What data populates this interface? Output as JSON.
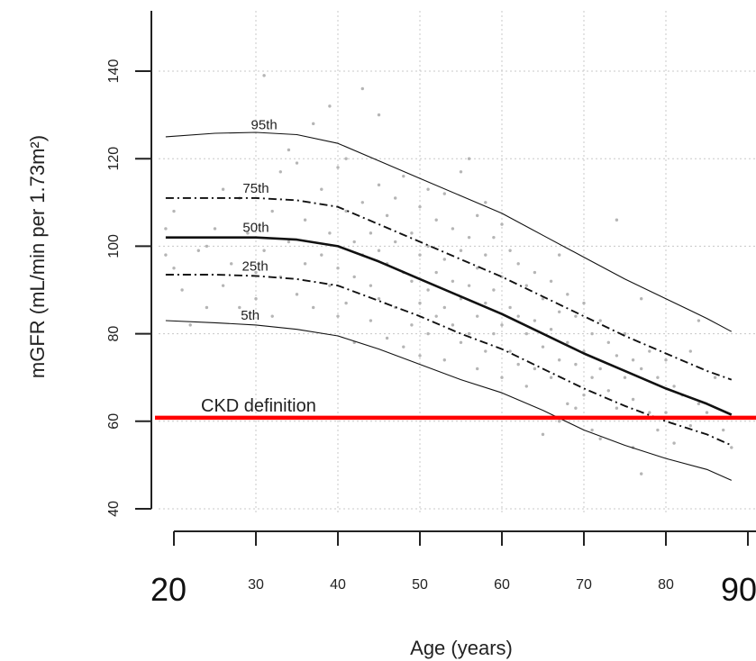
{
  "chart_data": {
    "type": "line",
    "xlabel": "Age (years)",
    "ylabel": "mGFR (mL/min per 1.73m²)",
    "xlim": [
      18,
      90
    ],
    "ylim": [
      38,
      150
    ],
    "x_ticks": [
      20,
      30,
      40,
      50,
      60,
      70,
      80,
      90
    ],
    "x_tick_labels": [
      "20",
      "30",
      "40",
      "50",
      "60",
      "70",
      "80",
      "90"
    ],
    "y_ticks": [
      40,
      60,
      80,
      100,
      120,
      140
    ],
    "y_tick_labels": [
      "40",
      "60",
      "80",
      "100",
      "120",
      "140"
    ],
    "grid": true,
    "x": [
      19,
      25,
      30,
      35,
      40,
      45,
      50,
      55,
      60,
      65,
      70,
      75,
      80,
      85,
      88
    ],
    "series": [
      {
        "name": "95th",
        "style": "solid-thin",
        "values": [
          125,
          125.8,
          126,
          125.5,
          123.5,
          119.5,
          115.5,
          111.5,
          107.5,
          102.5,
          97.5,
          92.5,
          88,
          83.5,
          80.5
        ]
      },
      {
        "name": "75th",
        "style": "dashdot",
        "values": [
          111,
          111,
          111,
          110.5,
          109,
          105,
          101,
          97,
          93,
          88.5,
          84,
          79.5,
          75.5,
          71.5,
          69.5
        ]
      },
      {
        "name": "50th",
        "style": "solid-thick",
        "values": [
          102,
          102,
          102,
          101.5,
          100,
          96.5,
          92.5,
          88.5,
          84.5,
          80,
          75.5,
          71.5,
          67.5,
          64,
          61.5
        ]
      },
      {
        "name": "25th",
        "style": "dashdot",
        "values": [
          93.5,
          93.5,
          93.2,
          92.5,
          91,
          87.5,
          84,
          80,
          76.5,
          72,
          67.5,
          63.5,
          60,
          57,
          54.5
        ]
      },
      {
        "name": "5th",
        "style": "solid-thin",
        "values": [
          83,
          82.5,
          82,
          81,
          79.5,
          76.5,
          73,
          69.5,
          66.5,
          62.5,
          58,
          54.5,
          51.5,
          49,
          46.5
        ]
      }
    ],
    "reference_line": {
      "label": "CKD definition",
      "y": 60.8,
      "color": "#ff0000"
    },
    "scatter": [
      [
        19,
        98
      ],
      [
        19,
        104
      ],
      [
        20,
        108
      ],
      [
        20,
        95
      ],
      [
        21,
        90
      ],
      [
        22,
        82
      ],
      [
        23,
        99
      ],
      [
        24,
        86
      ],
      [
        24,
        100
      ],
      [
        25,
        104
      ],
      [
        26,
        91
      ],
      [
        26,
        113
      ],
      [
        27,
        96
      ],
      [
        28,
        86
      ],
      [
        28,
        111
      ],
      [
        29,
        103
      ],
      [
        30,
        88
      ],
      [
        30,
        94
      ],
      [
        31,
        139
      ],
      [
        31,
        99
      ],
      [
        32,
        84
      ],
      [
        32,
        108
      ],
      [
        33,
        117
      ],
      [
        33,
        93
      ],
      [
        34,
        122
      ],
      [
        34,
        101
      ],
      [
        35,
        119
      ],
      [
        35,
        89
      ],
      [
        36,
        106
      ],
      [
        36,
        96
      ],
      [
        37,
        128
      ],
      [
        37,
        86
      ],
      [
        38,
        113
      ],
      [
        38,
        98
      ],
      [
        39,
        132
      ],
      [
        39,
        103
      ],
      [
        39,
        91
      ],
      [
        40,
        118
      ],
      [
        40,
        95
      ],
      [
        40,
        84
      ],
      [
        41,
        120
      ],
      [
        41,
        108
      ],
      [
        41,
        87
      ],
      [
        42,
        101
      ],
      [
        42,
        93
      ],
      [
        42,
        78
      ],
      [
        43,
        136
      ],
      [
        43,
        110
      ],
      [
        43,
        98
      ],
      [
        44,
        103
      ],
      [
        44,
        91
      ],
      [
        44,
        83
      ],
      [
        45,
        130
      ],
      [
        45,
        114
      ],
      [
        45,
        99
      ],
      [
        45,
        88
      ],
      [
        46,
        107
      ],
      [
        46,
        96
      ],
      [
        46,
        79
      ],
      [
        47,
        111
      ],
      [
        47,
        101
      ],
      [
        47,
        86
      ],
      [
        48,
        116
      ],
      [
        48,
        94
      ],
      [
        48,
        77
      ],
      [
        49,
        103
      ],
      [
        49,
        92
      ],
      [
        49,
        82
      ],
      [
        50,
        109
      ],
      [
        50,
        98
      ],
      [
        50,
        87
      ],
      [
        50,
        75
      ],
      [
        51,
        113
      ],
      [
        51,
        100
      ],
      [
        51,
        90
      ],
      [
        51,
        80
      ],
      [
        52,
        106
      ],
      [
        52,
        94
      ],
      [
        52,
        84
      ],
      [
        53,
        112
      ],
      [
        53,
        97
      ],
      [
        53,
        86
      ],
      [
        53,
        74
      ],
      [
        54,
        104
      ],
      [
        54,
        92
      ],
      [
        54,
        82
      ],
      [
        55,
        117
      ],
      [
        55,
        99
      ],
      [
        55,
        88
      ],
      [
        55,
        78
      ],
      [
        56,
        120
      ],
      [
        56,
        102
      ],
      [
        56,
        91
      ],
      [
        56,
        80
      ],
      [
        57,
        107
      ],
      [
        57,
        95
      ],
      [
        57,
        84
      ],
      [
        57,
        72
      ],
      [
        58,
        110
      ],
      [
        58,
        98
      ],
      [
        58,
        87
      ],
      [
        58,
        76
      ],
      [
        59,
        102
      ],
      [
        59,
        90
      ],
      [
        59,
        80
      ],
      [
        60,
        105
      ],
      [
        60,
        93
      ],
      [
        60,
        82
      ],
      [
        60,
        70
      ],
      [
        61,
        99
      ],
      [
        61,
        86
      ],
      [
        61,
        76
      ],
      [
        62,
        96
      ],
      [
        62,
        84
      ],
      [
        62,
        73
      ],
      [
        63,
        91
      ],
      [
        63,
        80
      ],
      [
        63,
        68
      ],
      [
        64,
        94
      ],
      [
        64,
        83
      ],
      [
        64,
        72
      ],
      [
        65,
        88
      ],
      [
        65,
        77
      ],
      [
        65,
        57
      ],
      [
        66,
        92
      ],
      [
        66,
        81
      ],
      [
        66,
        70
      ],
      [
        67,
        98
      ],
      [
        67,
        85
      ],
      [
        67,
        74
      ],
      [
        67,
        60
      ],
      [
        68,
        89
      ],
      [
        68,
        78
      ],
      [
        68,
        64
      ],
      [
        69,
        84
      ],
      [
        69,
        73
      ],
      [
        69,
        63
      ],
      [
        70,
        87
      ],
      [
        70,
        76
      ],
      [
        70,
        66
      ],
      [
        71,
        80
      ],
      [
        71,
        70
      ],
      [
        71,
        58
      ],
      [
        72,
        83
      ],
      [
        72,
        72
      ],
      [
        72,
        56
      ],
      [
        73,
        78
      ],
      [
        73,
        67
      ],
      [
        74,
        106
      ],
      [
        74,
        75
      ],
      [
        74,
        63
      ],
      [
        75,
        80
      ],
      [
        75,
        70
      ],
      [
        76,
        74
      ],
      [
        76,
        65
      ],
      [
        76,
        54
      ],
      [
        77,
        88
      ],
      [
        77,
        72
      ],
      [
        77,
        48
      ],
      [
        78,
        76
      ],
      [
        78,
        62
      ],
      [
        79,
        70
      ],
      [
        79,
        58
      ],
      [
        80,
        74
      ],
      [
        80,
        62
      ],
      [
        81,
        68
      ],
      [
        81,
        55
      ],
      [
        82,
        66
      ],
      [
        83,
        76
      ],
      [
        83,
        59
      ],
      [
        84,
        83
      ],
      [
        84,
        64
      ],
      [
        85,
        62
      ],
      [
        86,
        70
      ],
      [
        87,
        58
      ],
      [
        88,
        54
      ]
    ]
  }
}
